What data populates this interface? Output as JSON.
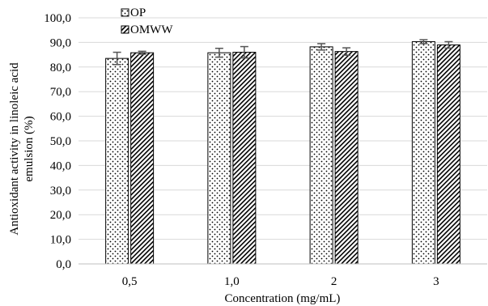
{
  "chart_data": {
    "type": "bar",
    "categories": [
      "0,5",
      "1,0",
      "2",
      "3"
    ],
    "series": [
      {
        "name": "OP",
        "values": [
          83.5,
          85.8,
          88.2,
          90.3
        ],
        "errors": [
          2.5,
          1.8,
          1.3,
          0.8
        ],
        "pattern": "dots"
      },
      {
        "name": "OMWW",
        "values": [
          85.8,
          86.0,
          86.3,
          89.0
        ],
        "errors": [
          0.6,
          2.3,
          1.5,
          1.3
        ],
        "pattern": "diagonal-hatch"
      }
    ],
    "xlabel": "Concentration (mg/mL)",
    "ylabel": "Antioxidant activity  in linoleic acid emulsion (%)",
    "ylabel_lines": [
      "Antioxidant activity  in linoleic acid",
      "emulsion (%)"
    ],
    "ylim": [
      0,
      100
    ],
    "yticks": [
      "0,0",
      "10,0",
      "20,0",
      "30,0",
      "40,0",
      "50,0",
      "60,0",
      "70,0",
      "80,0",
      "90,0",
      "100,0"
    ],
    "grid": true,
    "legend_position": "top-left"
  }
}
